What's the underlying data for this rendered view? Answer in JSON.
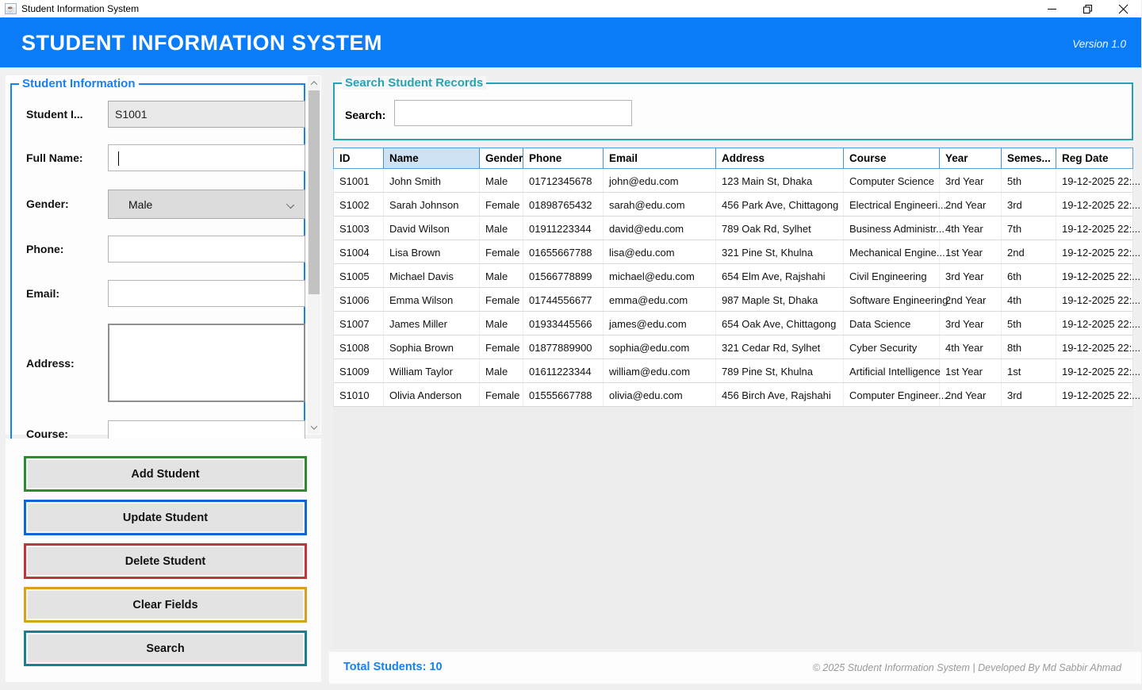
{
  "window": {
    "title": "Student Information System",
    "icon": "java-cup",
    "controls": {
      "minimize": "minimize",
      "restore": "restore",
      "close": "close"
    }
  },
  "header": {
    "title": "STUDENT INFORMATION SYSTEM",
    "version": "Version 1.0",
    "bg_color": "#0b7cf8"
  },
  "form": {
    "panel_title": "Student Information",
    "student_id": {
      "label": "Student I...",
      "value": "S1001"
    },
    "full_name": {
      "label": "Full Name:",
      "value": ""
    },
    "gender": {
      "label": "Gender:",
      "value": "Male"
    },
    "phone": {
      "label": "Phone:",
      "value": ""
    },
    "email": {
      "label": "Email:",
      "value": ""
    },
    "address": {
      "label": "Address:",
      "value": ""
    },
    "course": {
      "label": "Course:",
      "value": ""
    }
  },
  "actions": [
    {
      "label": "Add Student",
      "color": "#2e8b33"
    },
    {
      "label": "Update Student",
      "color": "#1266cc"
    },
    {
      "label": "Delete Student",
      "color": "#c2353f"
    },
    {
      "label": "Clear Fields",
      "color": "#d6a11e"
    },
    {
      "label": "Search",
      "color": "#17818f"
    }
  ],
  "search": {
    "panel_title": "Search Student Records",
    "label": "Search:",
    "value": ""
  },
  "table": {
    "columns": [
      "ID",
      "Name",
      "Gender",
      "Phone",
      "Email",
      "Address",
      "Course",
      "Year",
      "Semes...",
      "Reg Date"
    ],
    "highlighted_column": "Name",
    "rows": [
      [
        "S1001",
        "John Smith",
        "Male",
        "01712345678",
        "john@edu.com",
        "123 Main St, Dhaka",
        "Computer Science",
        "3rd Year",
        "5th",
        "19-12-2025 22:..."
      ],
      [
        "S1002",
        "Sarah Johnson",
        "Female",
        "01898765432",
        "sarah@edu.com",
        "456 Park Ave, Chittagong",
        "Electrical Engineeri...",
        "2nd Year",
        "3rd",
        "19-12-2025 22:..."
      ],
      [
        "S1003",
        "David Wilson",
        "Male",
        "01911223344",
        "david@edu.com",
        "789 Oak Rd, Sylhet",
        "Business Administr...",
        "4th Year",
        "7th",
        "19-12-2025 22:..."
      ],
      [
        "S1004",
        "Lisa Brown",
        "Female",
        "01655667788",
        "lisa@edu.com",
        "321 Pine St, Khulna",
        "Mechanical Engine...",
        "1st Year",
        "2nd",
        "19-12-2025 22:..."
      ],
      [
        "S1005",
        "Michael Davis",
        "Male",
        "01566778899",
        "michael@edu.com",
        "654 Elm Ave, Rajshahi",
        "Civil Engineering",
        "3rd Year",
        "6th",
        "19-12-2025 22:..."
      ],
      [
        "S1006",
        "Emma Wilson",
        "Female",
        "01744556677",
        "emma@edu.com",
        "987 Maple St, Dhaka",
        "Software Engineering",
        "2nd Year",
        "4th",
        "19-12-2025 22:..."
      ],
      [
        "S1007",
        "James Miller",
        "Male",
        "01933445566",
        "james@edu.com",
        "654 Oak Ave, Chittagong",
        "Data Science",
        "3rd Year",
        "5th",
        "19-12-2025 22:..."
      ],
      [
        "S1008",
        "Sophia Brown",
        "Female",
        "01877889900",
        "sophia@edu.com",
        "321 Cedar Rd, Sylhet",
        "Cyber Security",
        "4th Year",
        "8th",
        "19-12-2025 22:..."
      ],
      [
        "S1009",
        "William Taylor",
        "Male",
        "01611223344",
        "william@edu.com",
        "789 Pine St, Khulna",
        "Artificial Intelligence",
        "1st Year",
        "1st",
        "19-12-2025 22:..."
      ],
      [
        "S1010",
        "Olivia Anderson",
        "Female",
        "01555667788",
        "olivia@edu.com",
        "456 Birch Ave, Rajshahi",
        "Computer Engineer...",
        "2nd Year",
        "3rd",
        "19-12-2025 22:..."
      ]
    ]
  },
  "footer": {
    "total": "Total Students: 10",
    "copyright": "© 2025 Student Information System | Developed By Md Sabbir Ahmad"
  },
  "colors": {
    "header_blue": "#0b7cf8",
    "panel_title_blue": "#1581f3",
    "teal": "#2aa0b4",
    "table_header_highlight": "#cfe2f4"
  }
}
